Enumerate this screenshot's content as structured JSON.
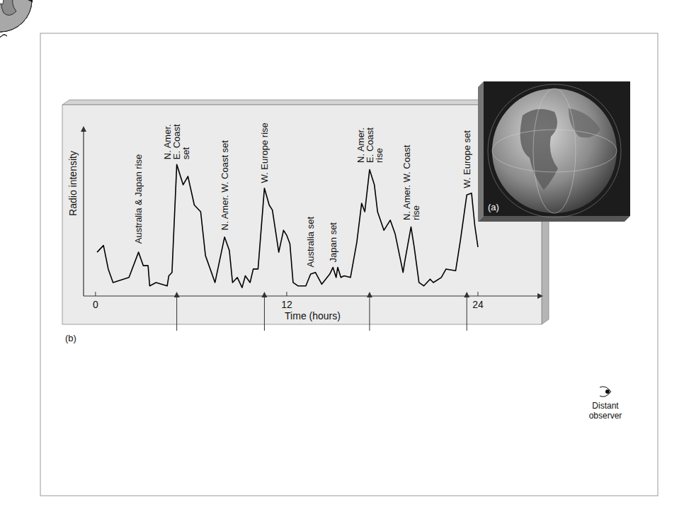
{
  "chart_data": {
    "type": "line",
    "y_label": "Radio intensity",
    "x_label": "Time (hours)",
    "panel_labels": [
      "(a)",
      "(b)"
    ],
    "observer_label": "Distant observer",
    "color": "#000000",
    "xlim": [
      -0.75,
      28
    ],
    "xticks": [
      0,
      12,
      24
    ],
    "ylim": [
      0,
      10
    ],
    "tick_labels": "x",
    "grid": false,
    "x": [
      0.1,
      0.5,
      0.8,
      1.1,
      2.1,
      2.7,
      3.0,
      3.3,
      3.4,
      3.8,
      4.5,
      4.6,
      4.8,
      5.1,
      5.5,
      5.8,
      6.2,
      6.6,
      6.9,
      7.5,
      8.1,
      8.4,
      8.6,
      8.9,
      9.2,
      9.4,
      9.7,
      9.9,
      10.2,
      10.6,
      10.9,
      11.1,
      11.5,
      11.8,
      12.0,
      12.2,
      12.4,
      12.7,
      13.2,
      13.5,
      13.8,
      14.2,
      14.7,
      14.9,
      15.1,
      15.2,
      15.4,
      15.6,
      16.0,
      16.4,
      16.7,
      16.9,
      17.2,
      17.5,
      17.7,
      18.1,
      18.5,
      18.8,
      19.3,
      19.4,
      19.8,
      20.0,
      20.3,
      20.6,
      21.0,
      21.2,
      21.7,
      22.0,
      22.6,
      22.9,
      23.3,
      23.6,
      23.8,
      24.0
    ],
    "values": [
      2.6,
      3.0,
      1.6,
      0.8,
      1.1,
      2.6,
      1.8,
      1.8,
      0.6,
      0.8,
      0.6,
      1.2,
      1.4,
      7.8,
      6.6,
      7.1,
      5.4,
      5.0,
      2.4,
      0.8,
      3.5,
      2.7,
      0.8,
      1.1,
      0.5,
      1.2,
      0.8,
      1.6,
      1.6,
      6.4,
      5.4,
      5.1,
      2.6,
      3.9,
      3.6,
      3.1,
      0.8,
      0.6,
      0.6,
      1.3,
      1.4,
      0.7,
      1.3,
      1.7,
      1.1,
      1.7,
      1.1,
      1.2,
      1.1,
      3.2,
      5.5,
      5.0,
      7.5,
      6.6,
      5.0,
      3.9,
      4.5,
      3.7,
      1.4,
      2.0,
      4.1,
      2.9,
      0.8,
      0.6,
      1.0,
      0.8,
      1.1,
      1.6,
      1.5,
      3.3,
      6.0,
      6.1,
      4.2,
      2.9
    ],
    "annotations": [
      {
        "lines": [
          "Australia & Japan rise"
        ],
        "x": 2.7,
        "y": 3.1
      },
      {
        "lines": [
          "N. Amer.",
          "E. Coast",
          "set"
        ],
        "x": 5.1,
        "y": 8.1
      },
      {
        "lines": [
          "N. Amer. W. Coast set"
        ],
        "x": 8.1,
        "y": 3.9
      },
      {
        "lines": [
          "W. Europe rise"
        ],
        "x": 10.6,
        "y": 6.7
      },
      {
        "lines": [
          "Australia set"
        ],
        "x": 13.5,
        "y": 1.7
      },
      {
        "lines": [
          "Japan set"
        ],
        "x": 14.9,
        "y": 2.0
      },
      {
        "lines": [
          "N. Amer.",
          "E. Coast",
          "rise"
        ],
        "x": 17.2,
        "y": 7.9
      },
      {
        "lines": [
          "N. Amer. W. Coast",
          "rise"
        ],
        "x": 19.8,
        "y": 4.5
      },
      {
        "lines": [
          "W. Europe set"
        ],
        "x": 23.3,
        "y": 6.4
      }
    ],
    "views_at": [
      5.1,
      10.6,
      17.2,
      23.3
    ]
  }
}
